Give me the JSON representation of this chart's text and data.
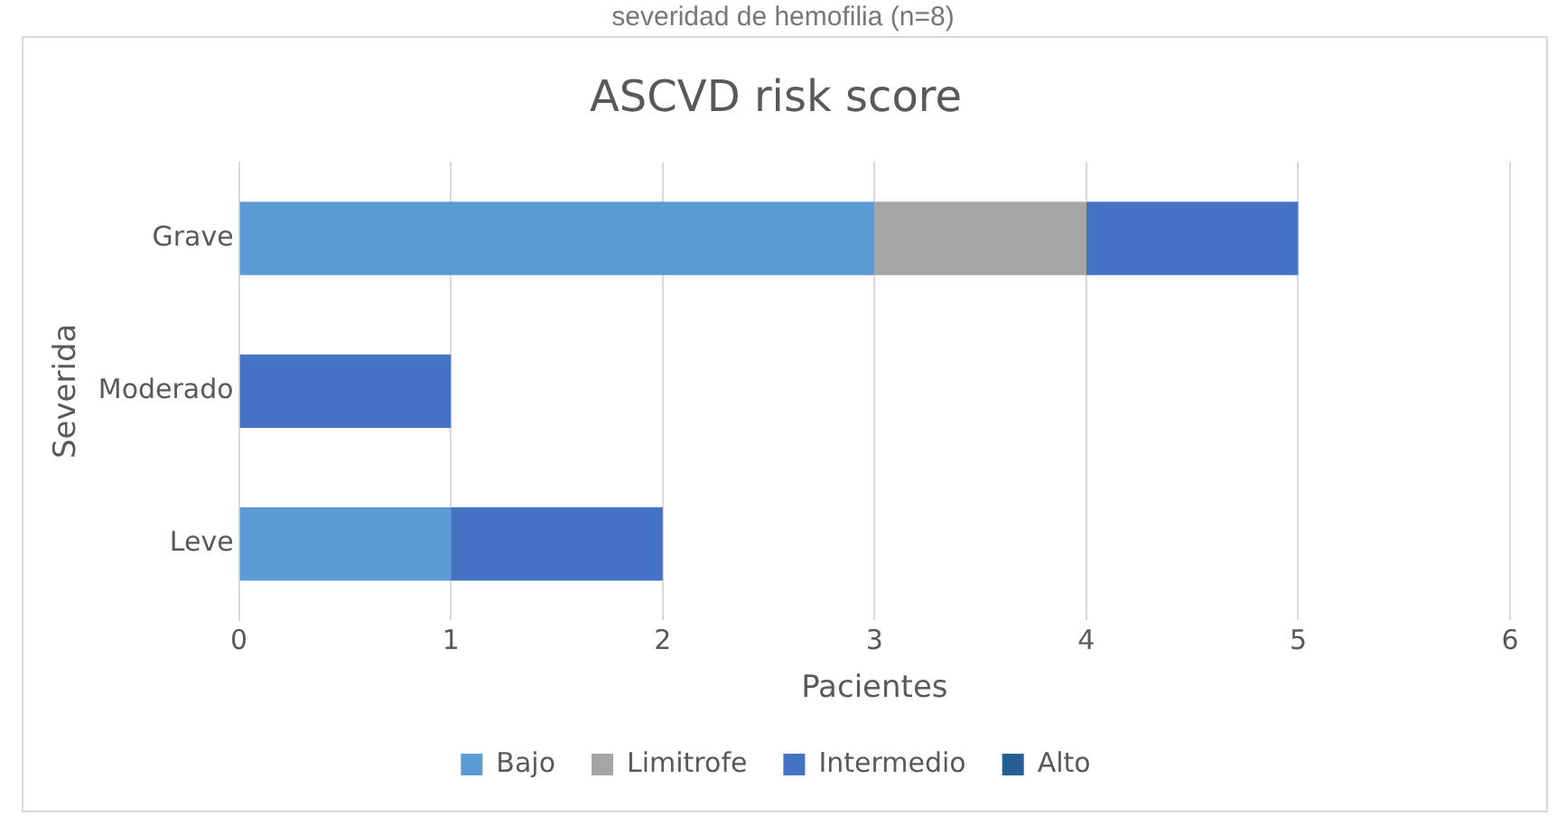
{
  "chart_data": {
    "type": "bar",
    "orientation": "horizontal",
    "stacked": true,
    "title": "ASCVD risk score",
    "xlabel": "Pacientes",
    "ylabel": "Severida",
    "annotations": [
      "severidad de hemofilia (n=8)"
    ],
    "categories": [
      "Grave",
      "Moderado",
      "Leve"
    ],
    "series": [
      {
        "name": "Bajo",
        "color": "#5b9bd5",
        "values": [
          3,
          0,
          1
        ]
      },
      {
        "name": "Limitrofe",
        "color": "#a5a5a5",
        "values": [
          1,
          0,
          0
        ]
      },
      {
        "name": "Intermedio",
        "color": "#4472c4",
        "values": [
          1,
          1,
          1
        ]
      },
      {
        "name": "Alto",
        "color": "#255e91",
        "values": [
          0,
          0,
          0
        ]
      }
    ],
    "xlim": [
      0,
      6
    ],
    "xticks": [
      0,
      1,
      2,
      3,
      4,
      5,
      6
    ],
    "grid": "x",
    "legend": "bottom"
  }
}
